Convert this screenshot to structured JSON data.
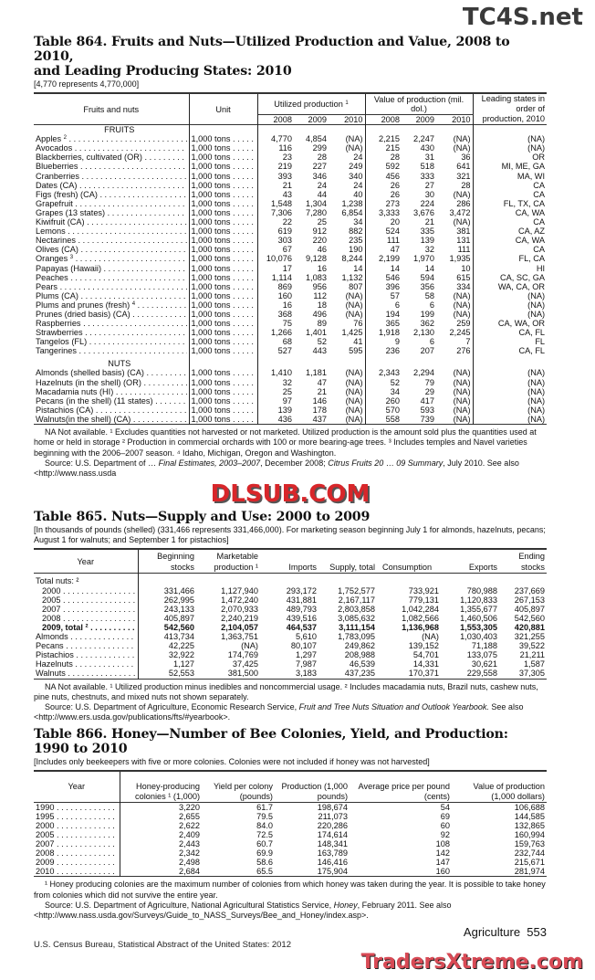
{
  "watermarks": {
    "top": "TC4S.net",
    "middle": "DLSUB.COM",
    "bottom": "TradersXtreme.com"
  },
  "t864": {
    "title1": "Table 864. Fruits and Nuts—Utilized Production and Value, 2008 to 2010,",
    "title2": "and Leading Producing States: 2010",
    "headnote": "[4,770 represents 4,770,000]",
    "headers": {
      "name": "Fruits and nuts",
      "unit": "Unit",
      "prod": "Utilized production",
      "prod_sup": "1",
      "value": "Value of production (mil. dol.)",
      "states": "Leading states in order of production, 2010",
      "years": [
        "2008",
        "2009",
        "2010"
      ]
    },
    "sections": [
      {
        "label": "FRUITS",
        "rows": [
          [
            "Apples",
            "2",
            "1,000 tons",
            "4,770",
            "4,854",
            "(NA)",
            "2,215",
            "2,247",
            "(NA)",
            "(NA)"
          ],
          [
            "Avocados",
            "",
            "1,000 tons",
            "116",
            "299",
            "(NA)",
            "215",
            "430",
            "(NA)",
            "(NA)"
          ],
          [
            "Blackberries, cultivated (OR)",
            "",
            "1,000 tons",
            "23",
            "28",
            "24",
            "28",
            "31",
            "36",
            "OR"
          ],
          [
            "Blueberries",
            "",
            "1,000 tons",
            "219",
            "227",
            "249",
            "592",
            "518",
            "641",
            "MI, ME, GA"
          ],
          [
            "Cranberries",
            "",
            "1,000 tons",
            "393",
            "346",
            "340",
            "456",
            "333",
            "321",
            "MA, WI"
          ],
          [
            "Dates (CA)",
            "",
            "1,000 tons",
            "21",
            "24",
            "24",
            "26",
            "27",
            "28",
            "CA"
          ],
          [
            "Figs (fresh) (CA)",
            "",
            "1,000 tons",
            "43",
            "44",
            "40",
            "26",
            "30",
            "(NA)",
            "CA"
          ],
          [
            "Grapefruit",
            "",
            "1,000 tons",
            "1,548",
            "1,304",
            "1,238",
            "273",
            "224",
            "286",
            "FL, TX, CA"
          ],
          [
            "Grapes (13 states)",
            "",
            "1,000 tons",
            "7,306",
            "7,280",
            "6,854",
            "3,333",
            "3,676",
            "3,472",
            "CA, WA"
          ],
          [
            "Kiwifruit (CA)",
            "",
            "1,000 tons",
            "22",
            "25",
            "34",
            "20",
            "21",
            "(NA)",
            "CA"
          ],
          [
            "Lemons",
            "",
            "1,000 tons",
            "619",
            "912",
            "882",
            "524",
            "335",
            "381",
            "CA, AZ"
          ],
          [
            "Nectarines",
            "",
            "1,000 tons",
            "303",
            "220",
            "235",
            "111",
            "139",
            "131",
            "CA, WA"
          ],
          [
            "Olives (CA)",
            "",
            "1,000 tons",
            "67",
            "46",
            "190",
            "47",
            "32",
            "111",
            "CA"
          ],
          [
            "Oranges",
            "3",
            "1,000 tons",
            "10,076",
            "9,128",
            "8,244",
            "2,199",
            "1,970",
            "1,935",
            "FL, CA"
          ],
          [
            "Papayas (Hawaii)",
            "",
            "1,000 tons",
            "17",
            "16",
            "14",
            "14",
            "14",
            "10",
            "HI"
          ],
          [
            "Peaches",
            "",
            "1,000 tons",
            "1,114",
            "1,083",
            "1,132",
            "546",
            "594",
            "615",
            "CA, SC, GA"
          ],
          [
            "Pears",
            "",
            "1,000 tons",
            "869",
            "956",
            "807",
            "396",
            "356",
            "334",
            "WA, CA, OR"
          ],
          [
            "Plums (CA)",
            "",
            "1,000 tons",
            "160",
            "112",
            "(NA)",
            "57",
            "58",
            "(NA)",
            "(NA)"
          ],
          [
            "Plums and prunes (fresh)",
            "4",
            "1,000 tons",
            "16",
            "18",
            "(NA)",
            "6",
            "6",
            "(NA)",
            "(NA)"
          ],
          [
            "Prunes (dried basis) (CA)",
            "",
            "1,000 tons",
            "368",
            "496",
            "(NA)",
            "194",
            "199",
            "(NA)",
            "(NA)"
          ],
          [
            "Raspberries",
            "",
            "1,000 tons",
            "75",
            "89",
            "76",
            "365",
            "362",
            "259",
            "CA, WA, OR"
          ],
          [
            "Strawberries",
            "",
            "1,000 tons",
            "1,266",
            "1,401",
            "1,425",
            "1,918",
            "2,130",
            "2,245",
            "CA, FL"
          ],
          [
            "Tangelos (FL)",
            "",
            "1,000 tons",
            "68",
            "52",
            "41",
            "9",
            "6",
            "7",
            "FL"
          ],
          [
            "Tangerines",
            "",
            "1,000 tons",
            "527",
            "443",
            "595",
            "236",
            "207",
            "276",
            "CA, FL"
          ]
        ]
      },
      {
        "label": "NUTS",
        "rows": [
          [
            "Almonds (shelled basis) (CA)",
            "",
            "1,000 tons",
            "1,410",
            "1,181",
            "(NA)",
            "2,343",
            "2,294",
            "(NA)",
            "(NA)"
          ],
          [
            "Hazelnuts (in the shell) (OR)",
            "",
            "1,000 tons",
            "32",
            "47",
            "(NA)",
            "52",
            "79",
            "(NA)",
            "(NA)"
          ],
          [
            "Macadamia nuts (HI)",
            "",
            "1,000 tons",
            "25",
            "21",
            "(NA)",
            "34",
            "29",
            "(NA)",
            "(NA)"
          ],
          [
            "Pecans (in the shell) (11 states)",
            "",
            "1,000 tons",
            "97",
            "146",
            "(NA)",
            "260",
            "417",
            "(NA)",
            "(NA)"
          ],
          [
            "Pistachios (CA)",
            "",
            "1,000 tons",
            "139",
            "178",
            "(NA)",
            "570",
            "593",
            "(NA)",
            "(NA)"
          ],
          [
            "Walnuts(in the shell) (CA)",
            "",
            "1,000 tons",
            "436",
            "437",
            "(NA)",
            "558",
            "739",
            "(NA)",
            "(NA)"
          ]
        ]
      }
    ],
    "footnote1": "NA Not available. ¹ Excludes quantities not harvested or not marketed. Utilized production is the amount sold plus the quantities used at home or held in storage ² Production in commercial orchards with 100 or more bearing-age trees. ³ Includes temples and Navel varieties beginning with the 2006–2007 season. ⁴ Idaho, Michigan, Oregon and Washington.",
    "source_a": "Source: U.S. Department of",
    "source_b": "Final Estimates, 2003–2007",
    "source_c": ", December 2008; ",
    "source_d": "Citrus Fruits 20",
    "source_e": "09 Summary",
    "source_f": ", July 2010. See also <http://www.nass.usda"
  },
  "t865": {
    "title": "Table 865. Nuts—Supply and Use: 2000 to 2009",
    "headnote": "[In thousands of pounds (shelled) (331,466 represents 331,466,000). For marketing season beginning July 1 for almonds, hazelnuts, pecans; August 1 for walnuts; and September 1 for pistachios]",
    "headers": [
      "Year",
      "Beginning stocks",
      "Marketable production ¹",
      "Imports",
      "Supply, total",
      "Consumption",
      "Exports",
      "Ending stocks"
    ],
    "group_label": "Total nuts: ²",
    "rows": [
      [
        "2000",
        "331,466",
        "1,127,940",
        "293,172",
        "1,752,577",
        "733,921",
        "780,988",
        "237,669"
      ],
      [
        "2005",
        "262,995",
        "1,472,240",
        "431,881",
        "2,167,117",
        "779,131",
        "1,120,833",
        "267,153"
      ],
      [
        "2007",
        "243,133",
        "2,070,933",
        "489,793",
        "2,803,858",
        "1,042,284",
        "1,355,677",
        "405,897"
      ],
      [
        "2008",
        "405,897",
        "2,240,219",
        "439,516",
        "3,085,632",
        "1,082,566",
        "1,460,506",
        "542,560"
      ],
      [
        "2009, total ²",
        "542,560",
        "2,104,057",
        "464,537",
        "3,111,154",
        "1,136,968",
        "1,553,305",
        "420,881"
      ],
      [
        "Almonds",
        "413,734",
        "1,363,751",
        "5,610",
        "1,783,095",
        "(NA)",
        "1,030,403",
        "321,255"
      ],
      [
        "Pecans",
        "42,225",
        "(NA)",
        "80,107",
        "249,862",
        "139,152",
        "71,188",
        "39,522"
      ],
      [
        "Pistachios",
        "32,922",
        "174,769",
        "1,297",
        "208,988",
        "54,701",
        "133,075",
        "21,211"
      ],
      [
        "Hazelnuts",
        "1,127",
        "37,425",
        "7,987",
        "46,539",
        "14,331",
        "30,621",
        "1,587"
      ],
      [
        "Walnuts",
        "52,553",
        "381,500",
        "3,183",
        "437,235",
        "170,371",
        "229,558",
        "37,305"
      ]
    ],
    "footnote": "NA Not available. ¹ Utilized production minus inedibles and noncommercial usage. ² Includes macadamia nuts, Brazil nuts, cashew nuts, pine nuts, chestnuts, and mixed nuts not shown separately.",
    "source_pre": "Source: U.S. Department of Agriculture, Economic Research Service, ",
    "source_title": "Fruit and Tree Nuts Situation and Outlook Yearbook.",
    "source_post": " See also <http://www.ers.usda.gov/publications/fts/#yearbook>."
  },
  "t866": {
    "title1": "Table 866. Honey—Number of Bee Colonies, Yield, and Production:",
    "title2": "1990 to 2010",
    "headnote": "[Includes only beekeepers with five or more colonies. Colonies were not included if honey was not harvested]",
    "headers": [
      "Year",
      "Honey-producing colonies ¹ (1,000)",
      "Yield per colony (pounds)",
      "Production (1,000 pounds)",
      "Average price per pound (cents)",
      "Value of production (1,000 dollars)"
    ],
    "rows": [
      [
        "1990",
        "3,220",
        "61.7",
        "198,674",
        "54",
        "106,688"
      ],
      [
        "1995",
        "2,655",
        "79.5",
        "211,073",
        "69",
        "144,585"
      ],
      [
        "2000",
        "2,622",
        "84.0",
        "220,286",
        "60",
        "132,865"
      ],
      [
        "2005",
        "2,409",
        "72.5",
        "174,614",
        "92",
        "160,994"
      ],
      [
        "2007",
        "2,443",
        "60.7",
        "148,341",
        "108",
        "159,763"
      ],
      [
        "2008",
        "2,342",
        "69.9",
        "163,789",
        "142",
        "232,744"
      ],
      [
        "2009",
        "2,498",
        "58.6",
        "146,416",
        "147",
        "215,671"
      ],
      [
        "2010",
        "2,684",
        "65.5",
        "175,904",
        "160",
        "281,974"
      ]
    ],
    "footnote": "¹ Honey producing colonies are the maximum number of colonies from which honey was taken during the year. It is possible to take honey from colonies which did not survive the entire year.",
    "source_pre": "Source: U.S. Department of Agriculture, National Agricultural Statistics Service, ",
    "source_title": "Honey",
    "source_post": ", February 2011. See also <http://www.nass.usda.gov/Surveys/Guide_to_NASS_Surveys/Bee_and_Honey/index.asp>."
  },
  "footer": {
    "section": "Agriculture",
    "page": "553",
    "publication": "U.S. Census Bureau, Statistical Abstract of the United States: 2012"
  }
}
